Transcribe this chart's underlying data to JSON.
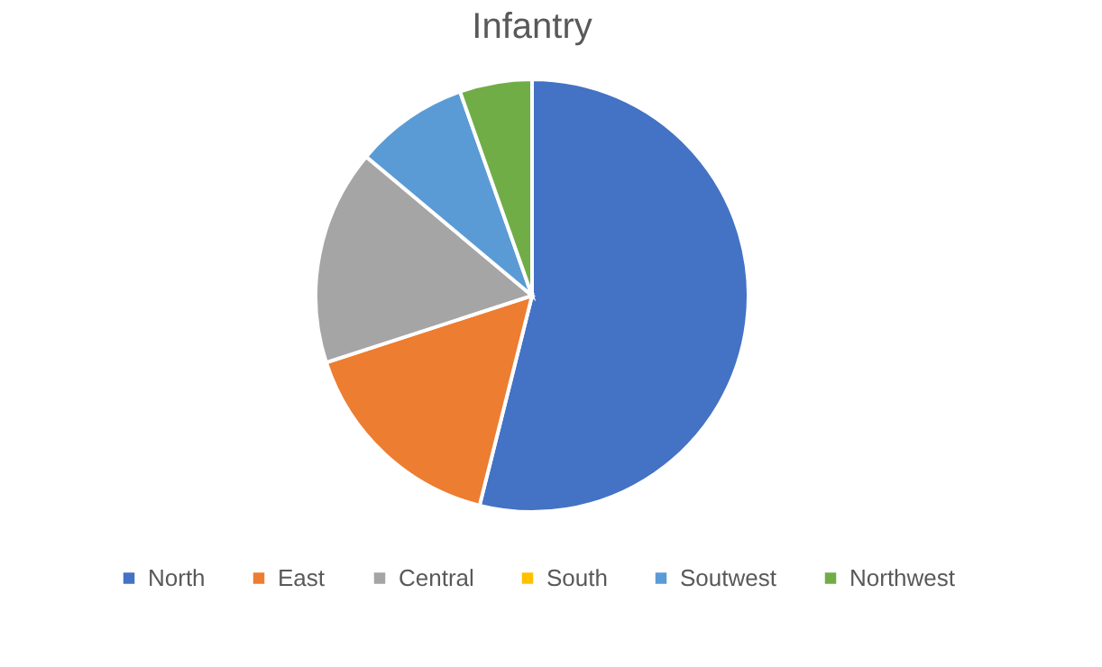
{
  "chart_data": {
    "type": "pie",
    "title": "Infantry",
    "categories": [
      "North",
      "East",
      "Central",
      "South",
      "Soutwest",
      "Northwest"
    ],
    "values": [
      53.9,
      16.1,
      16.1,
      0,
      8.5,
      5.4
    ],
    "colors": [
      "#4472c4",
      "#ed7d31",
      "#a5a5a5",
      "#ffc000",
      "#5b9bd5",
      "#70ad47"
    ],
    "legend": "bottom"
  }
}
